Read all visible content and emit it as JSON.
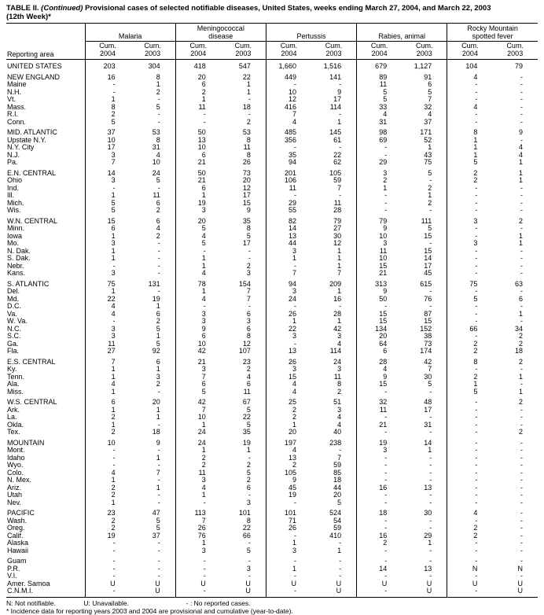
{
  "title": {
    "part1": "TABLE II.",
    "part2": "(Continued)",
    "part3": "Provisional cases of selected notifiable diseases, United States, weeks ending March 27, 2004, and March 22, 2003",
    "line2": "(12th Week)*"
  },
  "table": {
    "reporting_area_header": "Reporting area",
    "groups": [
      {
        "lines": [
          "Malaria"
        ]
      },
      {
        "lines": [
          "Meningococcal",
          "disease"
        ]
      },
      {
        "lines": [
          "Pertussis"
        ]
      },
      {
        "lines": [
          "Rabies, animal"
        ]
      },
      {
        "lines": [
          "Rocky Mountain",
          "spotted fever"
        ]
      }
    ],
    "subcolumns": [
      {
        "line1": "Cum.",
        "line2": "2004"
      },
      {
        "line1": "Cum.",
        "line2": "2003"
      },
      {
        "line1": "Cum.",
        "line2": "2004"
      },
      {
        "line1": "Cum.",
        "line2": "2003"
      },
      {
        "line1": "Cum.",
        "line2": "2004"
      },
      {
        "line1": "Cum.",
        "line2": "2003"
      },
      {
        "line1": "Cum.",
        "line2": "2004"
      },
      {
        "line1": "Cum.",
        "line2": "2003"
      },
      {
        "line1": "Cum.",
        "line2": "2004"
      },
      {
        "line1": "Cum.",
        "line2": "2003"
      }
    ],
    "rows": [
      {
        "area": "UNITED STATES",
        "type": "us",
        "gap": true,
        "v": [
          "203",
          "304",
          "418",
          "547",
          "1,660",
          "1,516",
          "679",
          "1,127",
          "104",
          "79"
        ]
      },
      {
        "area": "NEW ENGLAND",
        "type": "region",
        "gap": true,
        "v": [
          "16",
          "8",
          "20",
          "22",
          "449",
          "141",
          "89",
          "91",
          "4",
          "-"
        ]
      },
      {
        "area": "Maine",
        "type": "state",
        "gap": false,
        "v": [
          "-",
          "1",
          "6",
          "1",
          "-",
          "-",
          "11",
          "6",
          "-",
          "-"
        ]
      },
      {
        "area": "N.H.",
        "type": "state",
        "gap": false,
        "v": [
          "-",
          "2",
          "2",
          "1",
          "10",
          "9",
          "5",
          "5",
          "-",
          "-"
        ]
      },
      {
        "area": "Vt.",
        "type": "state",
        "gap": false,
        "v": [
          "1",
          "-",
          "1",
          "-",
          "12",
          "17",
          "5",
          "7",
          "-",
          "-"
        ]
      },
      {
        "area": "Mass.",
        "type": "state",
        "gap": false,
        "v": [
          "8",
          "5",
          "11",
          "18",
          "416",
          "114",
          "33",
          "32",
          "4",
          "-"
        ]
      },
      {
        "area": "R.I.",
        "type": "state",
        "gap": false,
        "v": [
          "2",
          "-",
          "-",
          "-",
          "7",
          "-",
          "4",
          "4",
          "-",
          "-"
        ]
      },
      {
        "area": "Conn.",
        "type": "state",
        "gap": false,
        "v": [
          "5",
          "-",
          "-",
          "2",
          "4",
          "1",
          "31",
          "37",
          "-",
          "-"
        ]
      },
      {
        "area": "MID. ATLANTIC",
        "type": "region",
        "gap": true,
        "v": [
          "37",
          "53",
          "50",
          "53",
          "485",
          "145",
          "98",
          "171",
          "8",
          "9"
        ]
      },
      {
        "area": "Upstate N.Y.",
        "type": "state",
        "gap": false,
        "v": [
          "10",
          "8",
          "13",
          "8",
          "356",
          "61",
          "69",
          "52",
          "1",
          "-"
        ]
      },
      {
        "area": "N.Y. City",
        "type": "state",
        "gap": false,
        "v": [
          "17",
          "31",
          "10",
          "11",
          "-",
          "-",
          "-",
          "1",
          "1",
          "4"
        ]
      },
      {
        "area": "N.J.",
        "type": "state",
        "gap": false,
        "v": [
          "3",
          "4",
          "6",
          "8",
          "35",
          "22",
          "-",
          "43",
          "1",
          "4"
        ]
      },
      {
        "area": "Pa.",
        "type": "state",
        "gap": false,
        "v": [
          "7",
          "10",
          "21",
          "26",
          "94",
          "62",
          "29",
          "75",
          "5",
          "1"
        ]
      },
      {
        "area": "E.N. CENTRAL",
        "type": "region",
        "gap": true,
        "v": [
          "14",
          "24",
          "50",
          "73",
          "201",
          "105",
          "3",
          "5",
          "2",
          "1"
        ]
      },
      {
        "area": "Ohio",
        "type": "state",
        "gap": false,
        "v": [
          "3",
          "5",
          "21",
          "20",
          "106",
          "59",
          "2",
          "-",
          "2",
          "1"
        ]
      },
      {
        "area": "Ind.",
        "type": "state",
        "gap": false,
        "v": [
          "-",
          "-",
          "6",
          "12",
          "11",
          "7",
          "1",
          "2",
          "-",
          "-"
        ]
      },
      {
        "area": "Ill.",
        "type": "state",
        "gap": false,
        "v": [
          "1",
          "11",
          "1",
          "17",
          "-",
          "-",
          "-",
          "1",
          "-",
          "-"
        ]
      },
      {
        "area": "Mich.",
        "type": "state",
        "gap": false,
        "v": [
          "5",
          "6",
          "19",
          "15",
          "29",
          "11",
          "-",
          "2",
          "-",
          "-"
        ]
      },
      {
        "area": "Wis.",
        "type": "state",
        "gap": false,
        "v": [
          "5",
          "2",
          "3",
          "9",
          "55",
          "28",
          "-",
          "-",
          "-",
          "-"
        ]
      },
      {
        "area": "W.N. CENTRAL",
        "type": "region",
        "gap": true,
        "v": [
          "15",
          "6",
          "20",
          "35",
          "82",
          "79",
          "79",
          "111",
          "3",
          "2"
        ]
      },
      {
        "area": "Minn.",
        "type": "state",
        "gap": false,
        "v": [
          "6",
          "4",
          "5",
          "8",
          "14",
          "27",
          "9",
          "5",
          "-",
          "-"
        ]
      },
      {
        "area": "Iowa",
        "type": "state",
        "gap": false,
        "v": [
          "1",
          "2",
          "4",
          "5",
          "13",
          "30",
          "10",
          "15",
          "-",
          "1"
        ]
      },
      {
        "area": "Mo.",
        "type": "state",
        "gap": false,
        "v": [
          "3",
          "-",
          "5",
          "17",
          "44",
          "12",
          "3",
          "-",
          "3",
          "1"
        ]
      },
      {
        "area": "N. Dak.",
        "type": "state",
        "gap": false,
        "v": [
          "1",
          "-",
          "-",
          "-",
          "3",
          "1",
          "11",
          "15",
          "-",
          "-"
        ]
      },
      {
        "area": "S. Dak.",
        "type": "state",
        "gap": false,
        "v": [
          "1",
          "-",
          "1",
          "-",
          "1",
          "1",
          "10",
          "14",
          "-",
          "-"
        ]
      },
      {
        "area": "Nebr.",
        "type": "state",
        "gap": false,
        "v": [
          "-",
          "-",
          "1",
          "2",
          "-",
          "1",
          "15",
          "17",
          "-",
          "-"
        ]
      },
      {
        "area": "Kans.",
        "type": "state",
        "gap": false,
        "v": [
          "3",
          "-",
          "4",
          "3",
          "7",
          "7",
          "21",
          "45",
          "-",
          "-"
        ]
      },
      {
        "area": "S. ATLANTIC",
        "type": "region",
        "gap": true,
        "v": [
          "75",
          "131",
          "78",
          "154",
          "94",
          "209",
          "313",
          "615",
          "75",
          "63"
        ]
      },
      {
        "area": "Del.",
        "type": "state",
        "gap": false,
        "v": [
          "1",
          "-",
          "1",
          "7",
          "3",
          "1",
          "9",
          "-",
          "-",
          "-"
        ]
      },
      {
        "area": "Md.",
        "type": "state",
        "gap": false,
        "v": [
          "22",
          "19",
          "4",
          "7",
          "24",
          "16",
          "50",
          "76",
          "5",
          "6"
        ]
      },
      {
        "area": "D.C.",
        "type": "state",
        "gap": false,
        "v": [
          "4",
          "1",
          "-",
          "-",
          "-",
          "-",
          "-",
          "-",
          "-",
          "-"
        ]
      },
      {
        "area": "Va.",
        "type": "state",
        "gap": false,
        "v": [
          "4",
          "6",
          "3",
          "6",
          "26",
          "28",
          "15",
          "87",
          "-",
          "1"
        ]
      },
      {
        "area": "W. Va.",
        "type": "state",
        "gap": false,
        "v": [
          "-",
          "2",
          "3",
          "3",
          "1",
          "1",
          "15",
          "15",
          "-",
          "-"
        ]
      },
      {
        "area": "N.C.",
        "type": "state",
        "gap": false,
        "v": [
          "3",
          "5",
          "9",
          "6",
          "22",
          "42",
          "134",
          "152",
          "66",
          "34"
        ]
      },
      {
        "area": "S.C.",
        "type": "state",
        "gap": false,
        "v": [
          "3",
          "1",
          "6",
          "8",
          "3",
          "3",
          "20",
          "38",
          "-",
          "2"
        ]
      },
      {
        "area": "Ga.",
        "type": "state",
        "gap": false,
        "v": [
          "11",
          "5",
          "10",
          "12",
          "-",
          "4",
          "64",
          "73",
          "2",
          "2"
        ]
      },
      {
        "area": "Fla.",
        "type": "state",
        "gap": false,
        "v": [
          "27",
          "92",
          "42",
          "107",
          "13",
          "114",
          "6",
          "174",
          "2",
          "18"
        ]
      },
      {
        "area": "E.S. CENTRAL",
        "type": "region",
        "gap": true,
        "v": [
          "7",
          "6",
          "21",
          "23",
          "26",
          "24",
          "28",
          "42",
          "8",
          "2"
        ]
      },
      {
        "area": "Ky.",
        "type": "state",
        "gap": false,
        "v": [
          "1",
          "1",
          "3",
          "2",
          "3",
          "3",
          "4",
          "7",
          "-",
          "-"
        ]
      },
      {
        "area": "Tenn.",
        "type": "state",
        "gap": false,
        "v": [
          "1",
          "3",
          "7",
          "4",
          "15",
          "11",
          "9",
          "30",
          "2",
          "1"
        ]
      },
      {
        "area": "Ala.",
        "type": "state",
        "gap": false,
        "v": [
          "4",
          "2",
          "6",
          "6",
          "4",
          "8",
          "15",
          "5",
          "1",
          "-"
        ]
      },
      {
        "area": "Miss.",
        "type": "state",
        "gap": false,
        "v": [
          "1",
          "-",
          "5",
          "11",
          "4",
          "2",
          "-",
          "-",
          "5",
          "1"
        ]
      },
      {
        "area": "W.S. CENTRAL",
        "type": "region",
        "gap": true,
        "v": [
          "6",
          "20",
          "42",
          "67",
          "25",
          "51",
          "32",
          "48",
          "-",
          "2"
        ]
      },
      {
        "area": "Ark.",
        "type": "state",
        "gap": false,
        "v": [
          "1",
          "1",
          "7",
          "5",
          "2",
          "3",
          "11",
          "17",
          "-",
          "-"
        ]
      },
      {
        "area": "La.",
        "type": "state",
        "gap": false,
        "v": [
          "2",
          "1",
          "10",
          "22",
          "2",
          "4",
          "-",
          "-",
          "-",
          "-"
        ]
      },
      {
        "area": "Okla.",
        "type": "state",
        "gap": false,
        "v": [
          "1",
          "-",
          "1",
          "5",
          "1",
          "4",
          "21",
          "31",
          "-",
          "-"
        ]
      },
      {
        "area": "Tex.",
        "type": "state",
        "gap": false,
        "v": [
          "2",
          "18",
          "24",
          "35",
          "20",
          "40",
          "-",
          "-",
          "-",
          "2"
        ]
      },
      {
        "area": "MOUNTAIN",
        "type": "region",
        "gap": true,
        "v": [
          "10",
          "9",
          "24",
          "19",
          "197",
          "238",
          "19",
          "14",
          "-",
          "-"
        ]
      },
      {
        "area": "Mont.",
        "type": "state",
        "gap": false,
        "v": [
          "-",
          "-",
          "1",
          "1",
          "4",
          "-",
          "3",
          "1",
          "-",
          "-"
        ]
      },
      {
        "area": "Idaho",
        "type": "state",
        "gap": false,
        "v": [
          "-",
          "1",
          "2",
          "-",
          "13",
          "7",
          "-",
          "-",
          "-",
          "-"
        ]
      },
      {
        "area": "Wyo.",
        "type": "state",
        "gap": false,
        "v": [
          "-",
          "-",
          "2",
          "2",
          "2",
          "59",
          "-",
          "-",
          "-",
          "-"
        ]
      },
      {
        "area": "Colo.",
        "type": "state",
        "gap": false,
        "v": [
          "4",
          "7",
          "11",
          "5",
          "105",
          "85",
          "-",
          "-",
          "-",
          "-"
        ]
      },
      {
        "area": "N. Mex.",
        "type": "state",
        "gap": false,
        "v": [
          "1",
          "-",
          "3",
          "2",
          "9",
          "18",
          "-",
          "-",
          "-",
          "-"
        ]
      },
      {
        "area": "Ariz.",
        "type": "state",
        "gap": false,
        "v": [
          "2",
          "1",
          "4",
          "6",
          "45",
          "44",
          "16",
          "13",
          "-",
          "-"
        ]
      },
      {
        "area": "Utah",
        "type": "state",
        "gap": false,
        "v": [
          "2",
          "-",
          "1",
          "-",
          "19",
          "20",
          "-",
          "-",
          "-",
          "-"
        ]
      },
      {
        "area": "Nev.",
        "type": "state",
        "gap": false,
        "v": [
          "1",
          "-",
          "-",
          "3",
          "-",
          "5",
          "-",
          "-",
          "-",
          "-"
        ]
      },
      {
        "area": "PACIFIC",
        "type": "region",
        "gap": true,
        "v": [
          "23",
          "47",
          "113",
          "101",
          "101",
          "524",
          "18",
          "30",
          "4",
          "-"
        ]
      },
      {
        "area": "Wash.",
        "type": "state",
        "gap": false,
        "v": [
          "2",
          "5",
          "7",
          "8",
          "71",
          "54",
          "-",
          "-",
          "-",
          "-"
        ]
      },
      {
        "area": "Oreg.",
        "type": "state",
        "gap": false,
        "v": [
          "2",
          "5",
          "26",
          "22",
          "26",
          "59",
          "-",
          "-",
          "2",
          "-"
        ]
      },
      {
        "area": "Calif.",
        "type": "state",
        "gap": false,
        "v": [
          "19",
          "37",
          "76",
          "66",
          "-",
          "410",
          "16",
          "29",
          "2",
          "-"
        ]
      },
      {
        "area": "Alaska",
        "type": "state",
        "gap": false,
        "v": [
          "-",
          "-",
          "1",
          "-",
          "1",
          "-",
          "2",
          "1",
          "-",
          "-"
        ]
      },
      {
        "area": "Hawaii",
        "type": "state",
        "gap": false,
        "v": [
          "-",
          "-",
          "3",
          "5",
          "3",
          "1",
          "-",
          "-",
          "-",
          "-"
        ]
      },
      {
        "area": "Guam",
        "type": "territory",
        "gap": true,
        "v": [
          "-",
          "-",
          "-",
          "-",
          "-",
          "-",
          "-",
          "-",
          "-",
          "-"
        ]
      },
      {
        "area": "P.R.",
        "type": "territory",
        "gap": false,
        "v": [
          "-",
          "-",
          "-",
          "3",
          "1",
          "-",
          "14",
          "13",
          "N",
          "N"
        ]
      },
      {
        "area": "V.I.",
        "type": "territory",
        "gap": false,
        "v": [
          "-",
          "-",
          "-",
          "-",
          "-",
          "-",
          "-",
          "-",
          "-",
          "-"
        ]
      },
      {
        "area": "Amer. Samoa",
        "type": "territory",
        "gap": false,
        "v": [
          "U",
          "U",
          "U",
          "U",
          "U",
          "U",
          "U",
          "U",
          "U",
          "U"
        ]
      },
      {
        "area": "C.N.M.I.",
        "type": "territory",
        "gap": false,
        "v": [
          "-",
          "U",
          "-",
          "U",
          "-",
          "U",
          "-",
          "U",
          "-",
          "U"
        ]
      }
    ]
  },
  "footnotes": {
    "item_n": "N: Not notifiable.",
    "item_u": "U: Unavailable.",
    "item_dash": "- : No reported cases.",
    "line2": "* Incidence data for reporting years 2003 and 2004 are provisional and cumulative (year-to-date)."
  }
}
